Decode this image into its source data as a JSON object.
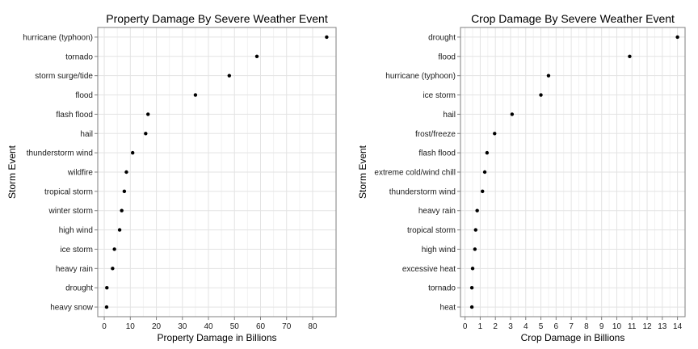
{
  "chart_data": [
    {
      "type": "scatter",
      "title": "Property Damage By Severe Weather Event",
      "xlabel": "Property Damage in Billions",
      "ylabel": "Storm Event",
      "xlim": [
        -2.5,
        89
      ],
      "xticks": [
        0,
        10,
        20,
        30,
        40,
        50,
        60,
        70,
        80
      ],
      "grid": true,
      "categories": [
        "hurricane (typhoon)",
        "tornado",
        "storm surge/tide",
        "flood",
        "flash flood",
        "hail",
        "thunderstorm wind",
        "wildfire",
        "tropical storm",
        "winter storm",
        "high wind",
        "ice storm",
        "heavy rain",
        "drought",
        "heavy snow"
      ],
      "values": [
        85.4,
        58.6,
        48.0,
        35.0,
        16.8,
        15.9,
        10.9,
        8.5,
        7.7,
        6.7,
        5.9,
        3.9,
        3.2,
        1.0,
        0.9
      ]
    },
    {
      "type": "scatter",
      "title": "Crop Damage By Severe Weather Event",
      "xlabel": "Crop Damage in Billions",
      "ylabel": "Storm Event",
      "xlim": [
        -0.3,
        14.5
      ],
      "xticks": [
        0,
        1,
        2,
        3,
        4,
        5,
        6,
        7,
        8,
        9,
        10,
        11,
        12,
        13,
        14
      ],
      "grid": true,
      "categories": [
        "drought",
        "flood",
        "hurricane (typhoon)",
        "ice storm",
        "hail",
        "frost/freeze",
        "flash flood",
        "extreme cold/wind chill",
        "thunderstorm wind",
        "heavy rain",
        "tropical storm",
        "high wind",
        "excessive heat",
        "tornado",
        "heat"
      ],
      "values": [
        14.0,
        10.85,
        5.5,
        5.0,
        3.1,
        1.95,
        1.45,
        1.3,
        1.15,
        0.8,
        0.7,
        0.65,
        0.5,
        0.45,
        0.45
      ]
    }
  ]
}
